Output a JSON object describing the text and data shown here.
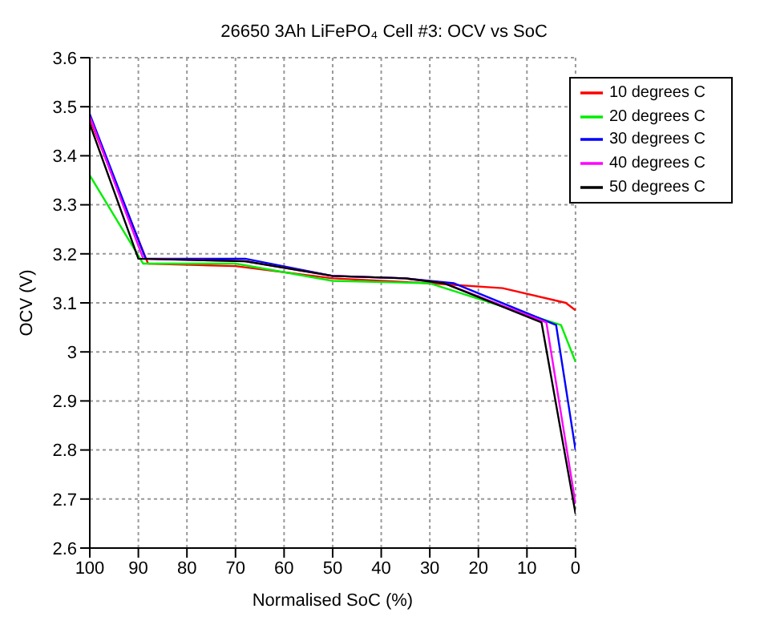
{
  "chart_data": {
    "type": "line",
    "title": "26650 3Ah LiFePO₄ Cell #3: OCV vs SoC",
    "xlabel": "Normalised SoC (%)",
    "ylabel": "OCV (V)",
    "xlim": [
      100,
      0
    ],
    "xticks": [
      100,
      90,
      80,
      70,
      60,
      50,
      40,
      30,
      20,
      10,
      0
    ],
    "ylim": [
      2.6,
      3.6
    ],
    "yticks": [
      2.6,
      2.7,
      2.8,
      2.9,
      3,
      3.1,
      3.2,
      3.3,
      3.4,
      3.5,
      3.6
    ],
    "grid": true,
    "legend": "top right",
    "line_style": "solid",
    "marker": "none",
    "series": [
      {
        "name": "10 degrees C",
        "color": "#ff0000",
        "x": [
          100,
          88,
          70,
          50,
          30,
          15,
          2,
          0
        ],
        "values": [
          3.475,
          3.18,
          3.175,
          3.15,
          3.14,
          3.13,
          3.1,
          3.085
        ]
      },
      {
        "name": "20 degrees C",
        "color": "#00ee00",
        "x": [
          100,
          89,
          70,
          50,
          30,
          3,
          0
        ],
        "values": [
          3.36,
          3.18,
          3.18,
          3.145,
          3.14,
          3.055,
          2.98
        ]
      },
      {
        "name": "30 degrees C",
        "color": "#0000ff",
        "x": [
          100,
          88.5,
          68,
          50,
          35,
          25,
          4,
          0
        ],
        "values": [
          3.485,
          3.19,
          3.19,
          3.155,
          3.15,
          3.14,
          3.055,
          2.8
        ]
      },
      {
        "name": "40 degrees C",
        "color": "#ff00ff",
        "x": [
          100,
          89,
          68,
          50,
          35,
          27,
          6,
          0
        ],
        "values": [
          3.48,
          3.19,
          3.185,
          3.155,
          3.15,
          3.14,
          3.06,
          2.69
        ]
      },
      {
        "name": "50 degrees C",
        "color": "#000000",
        "x": [
          100,
          90,
          68,
          50,
          35,
          27,
          7,
          0
        ],
        "values": [
          3.465,
          3.19,
          3.185,
          3.155,
          3.15,
          3.14,
          3.06,
          2.67
        ]
      }
    ]
  }
}
